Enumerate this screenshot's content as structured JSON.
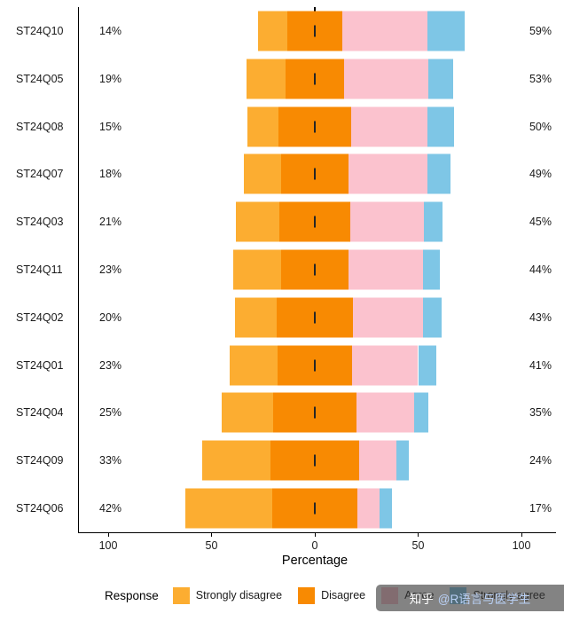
{
  "chart_data": {
    "type": "bar",
    "variant": "diverging-likert",
    "xlabel": "Percentage",
    "grid": false,
    "axis_ticks": [
      {
        "value": -100,
        "label": "100"
      },
      {
        "value": -50,
        "label": "50"
      },
      {
        "value": 0,
        "label": "0"
      },
      {
        "value": 50,
        "label": "50"
      },
      {
        "value": 100,
        "label": "100"
      }
    ],
    "legend": {
      "title": "Response",
      "position": "bottom",
      "entries": [
        {
          "label": "Strongly disagree",
          "color": "#FCAD31"
        },
        {
          "label": "Disagree",
          "color": "#F88A02"
        },
        {
          "label": "Agree",
          "color": "#FBC2CE"
        },
        {
          "label": "Strongly agree",
          "color": "#7EC6E6"
        }
      ]
    },
    "center_category": "Disagree",
    "items": [
      {
        "label": "ST24Q10",
        "low_label": "14%",
        "high_label": "59%",
        "values": {
          "strongly_disagree": 14,
          "disagree": 27,
          "agree": 41,
          "strongly_agree": 18
        }
      },
      {
        "label": "ST24Q05",
        "low_label": "19%",
        "high_label": "53%",
        "values": {
          "strongly_disagree": 19,
          "disagree": 28,
          "agree": 41,
          "strongly_agree": 12
        }
      },
      {
        "label": "ST24Q08",
        "low_label": "15%",
        "high_label": "50%",
        "values": {
          "strongly_disagree": 15,
          "disagree": 35,
          "agree": 37,
          "strongly_agree": 13
        }
      },
      {
        "label": "ST24Q07",
        "low_label": "18%",
        "high_label": "49%",
        "values": {
          "strongly_disagree": 18,
          "disagree": 33,
          "agree": 38,
          "strongly_agree": 11
        }
      },
      {
        "label": "ST24Q03",
        "low_label": "21%",
        "high_label": "45%",
        "values": {
          "strongly_disagree": 21,
          "disagree": 34,
          "agree": 36,
          "strongly_agree": 9
        }
      },
      {
        "label": "ST24Q11",
        "low_label": "23%",
        "high_label": "44%",
        "values": {
          "strongly_disagree": 23,
          "disagree": 33,
          "agree": 36,
          "strongly_agree": 8
        }
      },
      {
        "label": "ST24Q02",
        "low_label": "20%",
        "high_label": "43%",
        "values": {
          "strongly_disagree": 20,
          "disagree": 37,
          "agree": 34,
          "strongly_agree": 9
        }
      },
      {
        "label": "ST24Q01",
        "low_label": "23%",
        "high_label": "41%",
        "values": {
          "strongly_disagree": 23,
          "disagree": 36,
          "agree": 32,
          "strongly_agree": 9
        }
      },
      {
        "label": "ST24Q04",
        "low_label": "25%",
        "high_label": "35%",
        "values": {
          "strongly_disagree": 25,
          "disagree": 40,
          "agree": 28,
          "strongly_agree": 7
        }
      },
      {
        "label": "ST24Q09",
        "low_label": "33%",
        "high_label": "24%",
        "values": {
          "strongly_disagree": 33,
          "disagree": 43,
          "agree": 18,
          "strongly_agree": 6
        }
      },
      {
        "label": "ST24Q06",
        "low_label": "42%",
        "high_label": "17%",
        "values": {
          "strongly_disagree": 42,
          "disagree": 41,
          "agree": 11,
          "strongly_agree": 6
        }
      }
    ]
  },
  "watermark": {
    "prefix": "知乎",
    "handle": "@R语言与医学生"
  }
}
